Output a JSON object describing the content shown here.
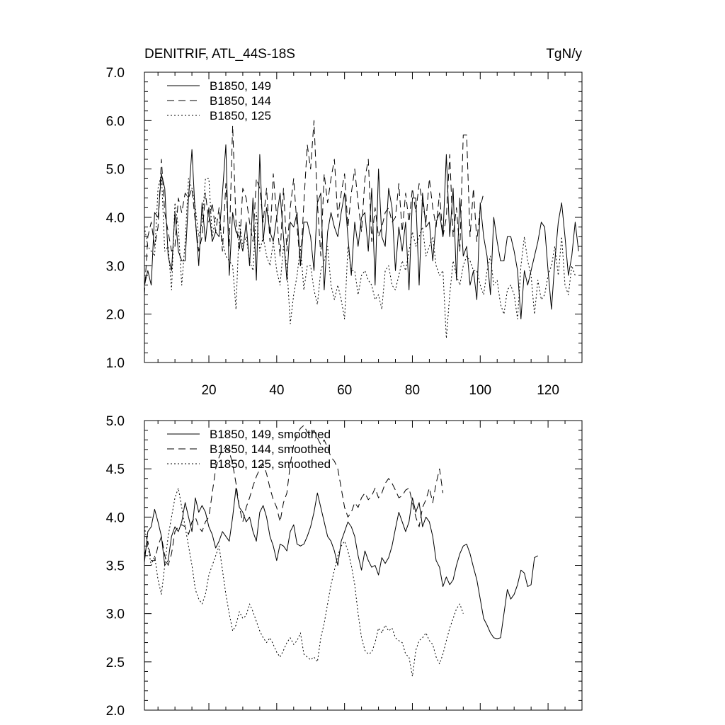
{
  "header": {
    "title_left": "DENITRIF, ATL_44S-18S",
    "title_right": "TgN/y"
  },
  "style": {
    "line_color": "#000000",
    "background": "#ffffff"
  },
  "chart_data": [
    {
      "type": "line",
      "title": "DENITRIF, ATL_44S-18S",
      "units": "TgN/y",
      "xlim": [
        1,
        130
      ],
      "ylim": [
        1.0,
        7.0
      ],
      "xticks": [
        20,
        40,
        60,
        80,
        100,
        120
      ],
      "yticks": [
        1.0,
        2.0,
        3.0,
        4.0,
        5.0,
        6.0,
        7.0
      ],
      "ytick_labels": [
        "1.0",
        "2.0",
        "3.0",
        "4.0",
        "5.0",
        "6.0",
        "7.0"
      ],
      "legend": {
        "placement": "top-left"
      },
      "series": [
        {
          "name": "B1850, 149",
          "dash": "solid",
          "values": [
            2.6,
            2.9,
            2.6,
            4.1,
            4.0,
            4.9,
            4.6,
            3.2,
            2.9,
            4.1,
            3.3,
            3.1,
            3.1,
            4.4,
            5.4,
            4.0,
            3.0,
            4.3,
            3.5,
            4.2,
            3.5,
            3.7,
            3.6,
            4.5,
            5.5,
            2.8,
            4.1,
            3.7,
            3.6,
            3.3,
            3.9,
            3.0,
            4.4,
            2.7,
            5.3,
            3.5,
            4.2,
            3.7,
            3.5,
            4.0,
            4.5,
            3.6,
            2.7,
            3.9,
            3.8,
            4.1,
            3.0,
            3.9,
            3.9,
            3.6,
            2.9,
            4.3,
            4.5,
            2.5,
            3.7,
            4.1,
            3.8,
            3.6,
            4.1,
            4.5,
            3.6,
            2.8,
            3.9,
            3.4,
            4.0,
            4.1,
            3.3,
            4.6,
            2.6,
            5.0,
            3.6,
            3.4,
            4.6,
            4.2,
            2.9,
            3.8,
            3.3,
            3.9,
            2.5,
            4.4,
            4.4,
            2.6,
            4.5,
            3.8,
            3.9,
            3.1,
            3.9,
            4.1,
            3.6,
            5.3,
            3.6,
            4.6,
            2.7,
            4.4,
            3.2,
            3.4,
            2.6,
            2.9,
            2.3,
            4.3,
            3.6,
            3.2,
            2.4,
            4.0,
            3.5,
            3.1,
            3.1,
            3.6,
            3.6,
            3.3,
            2.9,
            1.9,
            2.9,
            2.6,
            2.9,
            3.2,
            3.5,
            3.9,
            3.8,
            2.9,
            2.1,
            3.1,
            3.9,
            4.3,
            3.6,
            2.8,
            3.2,
            3.9,
            3.3
          ]
        },
        {
          "name": "B1850, 144",
          "dash": "dashed",
          "values": [
            2.4,
            3.6,
            3.9,
            3.4,
            3.8,
            5.2,
            4.1,
            3.7,
            3.3,
            3.4,
            4.4,
            4.1,
            4.5,
            4.4,
            4.6,
            3.9,
            3.3,
            3.6,
            4.5,
            3.9,
            4.3,
            3.7,
            4.2,
            3.3,
            4.7,
            3.4,
            5.9,
            3.9,
            3.3,
            4.6,
            4.4,
            3.9,
            3.5,
            4.8,
            4.6,
            3.9,
            4.6,
            3.5,
            4.9,
            4.0,
            3.2,
            4.6,
            3.3,
            4.2,
            4.8,
            3.8,
            3.0,
            4.3,
            5.5,
            5.0,
            6.0,
            4.3,
            3.2,
            4.9,
            4.3,
            4.8,
            5.2,
            4.0,
            4.5,
            4.9,
            3.8,
            4.5,
            5.0,
            4.3,
            3.7,
            4.8,
            5.2,
            3.5,
            4.2,
            3.6,
            3.8,
            4.1,
            4.2,
            3.9,
            4.0,
            4.7,
            3.7,
            4.5,
            3.9,
            4.6,
            4.1,
            4.7,
            4.3,
            3.9,
            4.8,
            4.2,
            3.8,
            4.5,
            3.6,
            4.0,
            5.3,
            3.6,
            4.2,
            3.3,
            5.7,
            5.7,
            3.6,
            4.6,
            3.5,
            4.2,
            4.5
          ]
        },
        {
          "name": "B1850, 125",
          "dash": "dotted",
          "values": [
            3.8,
            3.4,
            3.3,
            3.2,
            4.6,
            4.9,
            3.3,
            3.4,
            2.5,
            4.3,
            3.8,
            2.6,
            3.5,
            4.8,
            4.6,
            4.2,
            3.6,
            3.9,
            4.8,
            4.8,
            3.6,
            4.0,
            3.9,
            3.5,
            3.2,
            3.1,
            3.0,
            2.1,
            3.9,
            3.4,
            3.6,
            3.1,
            2.9,
            4.1,
            3.3,
            3.6,
            3.2,
            3.0,
            3.5,
            2.9,
            2.6,
            3.4,
            3.0,
            1.8,
            2.4,
            2.8,
            3.4,
            2.5,
            3.0,
            3.0,
            2.5,
            2.2,
            2.9,
            3.1,
            3.4,
            2.6,
            2.3,
            2.6,
            2.3,
            1.9,
            3.4,
            2.9,
            2.9,
            2.4,
            2.8,
            2.9,
            2.7,
            2.6,
            2.3,
            2.4,
            2.1,
            2.9,
            3.0,
            2.6,
            2.5,
            2.8,
            3.1,
            2.9,
            3.3,
            3.7,
            3.4,
            3.6,
            3.8,
            3.2,
            3.4,
            3.6,
            3.0,
            2.8,
            2.9,
            1.5,
            2.4,
            3.1,
            2.8,
            2.6,
            3.0,
            3.2,
            3.1,
            2.9,
            2.9,
            2.6,
            2.4,
            2.9,
            3.2,
            2.6,
            2.7,
            2.2,
            2.0,
            2.5,
            2.6,
            2.4,
            1.9,
            3.0,
            3.6,
            3.1,
            2.8,
            2.0,
            2.7,
            2.3,
            2.4,
            2.8,
            3.0,
            3.4,
            2.8,
            3.6,
            2.6,
            2.4,
            3.0,
            2.8
          ]
        }
      ]
    },
    {
      "type": "line",
      "xlim": [
        1,
        130
      ],
      "ylim": [
        2.0,
        5.0
      ],
      "xticks": [
        20,
        40,
        60,
        80,
        100,
        120
      ],
      "yticks": [
        2.0,
        2.5,
        3.0,
        3.5,
        4.0,
        4.5,
        5.0
      ],
      "ytick_labels": [
        "2.0",
        "2.5",
        "3.0",
        "3.5",
        "4.0",
        "4.5",
        "5.0"
      ],
      "legend": {
        "placement": "top-left"
      },
      "series": [
        {
          "name": "B1850, 149, smoothed",
          "dash": "solid",
          "values": [
            3.53,
            3.85,
            3.9,
            4.08,
            3.95,
            3.8,
            3.5,
            3.55,
            3.8,
            3.9,
            3.85,
            3.95,
            4.15,
            4.0,
            3.85,
            4.2,
            4.05,
            4.12,
            4.05,
            3.9,
            3.82,
            3.68,
            3.75,
            3.85,
            3.8,
            3.75,
            4.0,
            4.3,
            4.1,
            4.05,
            3.95,
            4.0,
            3.85,
            3.75,
            4.05,
            4.12,
            4.0,
            3.8,
            3.7,
            3.55,
            3.72,
            3.7,
            3.65,
            3.85,
            3.92,
            3.72,
            3.7,
            3.72,
            3.8,
            3.9,
            4.05,
            4.25,
            4.1,
            3.95,
            3.8,
            3.75,
            3.65,
            3.5,
            3.75,
            3.85,
            3.95,
            3.9,
            3.8,
            3.6,
            3.45,
            3.65,
            3.55,
            3.48,
            3.5,
            3.4,
            3.58,
            3.52,
            3.58,
            3.7,
            3.88,
            4.05,
            3.95,
            3.85,
            3.95,
            4.2,
            4.05,
            4.15,
            3.9,
            4.0,
            3.95,
            3.8,
            3.55,
            3.48,
            3.28,
            3.38,
            3.3,
            3.35,
            3.5,
            3.62,
            3.7,
            3.72,
            3.62,
            3.48,
            3.35,
            3.15,
            2.95,
            2.88,
            2.8,
            2.75,
            2.74,
            2.75,
            3.0,
            3.25,
            3.15,
            3.2,
            3.3,
            3.45,
            3.42,
            3.28,
            3.3,
            3.58,
            3.6
          ]
        },
        {
          "name": "B1850, 144, smoothed",
          "dash": "dashed",
          "values": [
            3.6,
            3.75,
            3.55,
            3.55,
            3.7,
            3.8,
            3.6,
            3.5,
            3.62,
            3.85,
            3.9,
            3.92,
            3.9,
            3.82,
            3.95,
            4.0,
            3.9,
            3.85,
            3.95,
            4.0,
            4.25,
            4.5,
            4.62,
            4.7,
            4.72,
            4.68,
            4.55,
            4.35,
            4.1,
            3.95,
            4.1,
            4.2,
            4.32,
            4.42,
            4.5,
            4.55,
            4.45,
            4.3,
            4.18,
            4.1,
            3.95,
            4.15,
            4.25,
            4.55,
            4.75,
            4.85,
            4.92,
            4.95,
            4.88,
            4.85,
            4.9,
            4.82,
            4.75,
            4.8,
            4.72,
            4.62,
            4.58,
            4.5,
            4.3,
            4.1,
            4.0,
            4.05,
            4.15,
            4.1,
            4.2,
            4.25,
            4.18,
            4.22,
            4.3,
            4.2,
            4.25,
            4.35,
            4.4,
            4.35,
            4.28,
            4.2,
            4.22,
            4.28,
            4.3,
            4.15,
            4.0,
            3.9,
            4.1,
            4.18,
            4.3,
            4.15,
            4.35,
            4.5,
            4.25
          ]
        },
        {
          "name": "B1850, 125, smoothed",
          "dash": "dotted",
          "values": [
            3.9,
            3.7,
            3.5,
            3.6,
            3.35,
            3.2,
            3.5,
            3.8,
            4.0,
            4.2,
            4.3,
            4.1,
            3.9,
            3.7,
            3.5,
            3.25,
            3.15,
            3.1,
            3.2,
            3.4,
            3.5,
            3.6,
            3.7,
            3.45,
            3.2,
            3.0,
            2.82,
            2.88,
            3.02,
            2.95,
            2.98,
            3.1,
            3.02,
            2.92,
            2.82,
            2.75,
            2.7,
            2.75,
            2.68,
            2.6,
            2.55,
            2.62,
            2.7,
            2.75,
            2.68,
            2.72,
            2.8,
            2.58,
            2.55,
            2.52,
            2.55,
            2.5,
            2.75,
            2.9,
            3.1,
            3.3,
            3.45,
            3.6,
            3.7,
            3.75,
            3.65,
            3.5,
            3.3,
            3.0,
            2.75,
            2.62,
            2.58,
            2.6,
            2.7,
            2.85,
            2.8,
            2.88,
            2.82,
            2.85,
            2.75,
            2.72,
            2.7,
            2.58,
            2.55,
            2.35,
            2.62,
            2.72,
            2.75,
            2.8,
            2.72,
            2.68,
            2.55,
            2.48,
            2.58,
            2.72,
            2.85,
            2.95,
            3.05,
            3.1,
            3.0
          ]
        }
      ]
    }
  ]
}
